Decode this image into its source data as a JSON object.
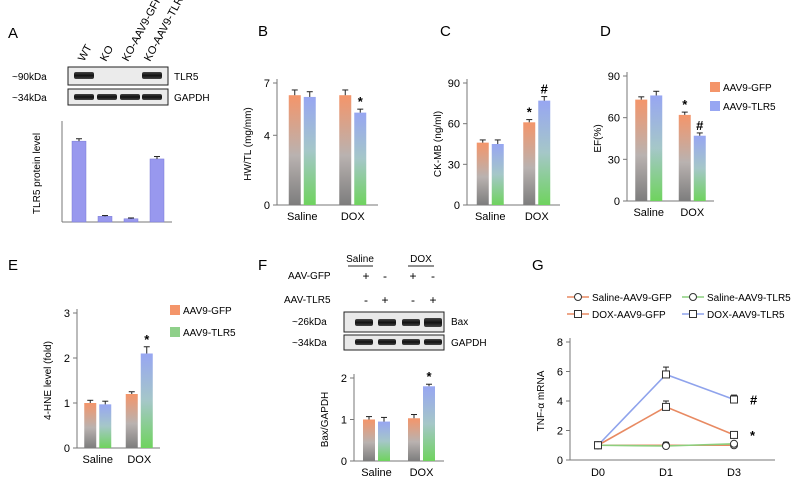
{
  "colors": {
    "gfp_top": "#f4956a",
    "tlr5_top": "#97a6f2",
    "bar_bottom": "#6fd35e",
    "gray_mid": "#b0b0b0",
    "purple_bar": "#9898ee",
    "line_gfp": "#e88a62",
    "line_tlr5": "#8fa3ec",
    "line_green": "#8ccf7e",
    "line_dark": "#333333"
  },
  "panel_labels": {
    "A": "A",
    "B": "B",
    "C": "C",
    "D": "D",
    "E": "E",
    "F": "F",
    "G": "G"
  },
  "legend": {
    "gfp": "AAV9-GFP",
    "tlr5": "AAV9-TLR5"
  },
  "blot_a": {
    "lanes": [
      "WT",
      "KO",
      "KO-AAV9-GFP",
      "KO-AAV9-TLR5"
    ],
    "markers": [
      "~90kDa",
      "~34kDa"
    ],
    "proteins": [
      "TLR5",
      "GAPDH"
    ]
  },
  "blot_f": {
    "groups": [
      "Saline",
      "DOX"
    ],
    "rows": [
      {
        "label": "AAV-GFP",
        "signs": [
          "+",
          "-",
          "+",
          "-"
        ]
      },
      {
        "label": "AAV-TLR5",
        "signs": [
          "-",
          "+",
          "-",
          "+"
        ]
      }
    ],
    "markers": [
      "~26kDa",
      "~34kDa"
    ],
    "proteins": [
      "Bax",
      "GAPDH"
    ]
  },
  "chart_data": [
    {
      "panel": "A",
      "type": "bar",
      "ylabel": "TLR5 protein level",
      "categories": [
        "WT",
        "KO",
        "KO-AAV9-GFP",
        "KO-AAV9-TLR5"
      ],
      "values": [
        1.0,
        0.07,
        0.04,
        0.78
      ],
      "errors": [
        0.03,
        0.01,
        0.01,
        0.03
      ],
      "ylim": [
        0,
        1.2
      ]
    },
    {
      "panel": "B",
      "type": "bar",
      "ylabel": "HW/TL (mg/mm)",
      "categories": [
        "Saline",
        "DOX"
      ],
      "ylim": [
        0,
        7
      ],
      "yticks": [
        0,
        4,
        7
      ],
      "series": [
        {
          "name": "AAV9-GFP",
          "values": [
            6.3,
            6.3
          ],
          "errors": [
            0.3,
            0.3
          ]
        },
        {
          "name": "AAV9-TLR5",
          "values": [
            6.2,
            5.3
          ],
          "errors": [
            0.3,
            0.2
          ]
        }
      ],
      "annotations": [
        {
          "category": "DOX",
          "series": "AAV9-TLR5",
          "text": "*"
        }
      ]
    },
    {
      "panel": "C",
      "type": "bar",
      "ylabel": "CK-MB (ng/ml)",
      "categories": [
        "Saline",
        "DOX"
      ],
      "ylim": [
        0,
        90
      ],
      "yticks": [
        0,
        30,
        60,
        90
      ],
      "series": [
        {
          "name": "AAV9-GFP",
          "values": [
            46,
            61
          ],
          "errors": [
            2,
            2
          ]
        },
        {
          "name": "AAV9-TLR5",
          "values": [
            45,
            77
          ],
          "errors": [
            3,
            3
          ]
        }
      ],
      "annotations": [
        {
          "category": "DOX",
          "series": "AAV9-GFP",
          "text": "*"
        },
        {
          "category": "DOX",
          "series": "AAV9-TLR5",
          "text": "#"
        }
      ]
    },
    {
      "panel": "D",
      "type": "bar",
      "ylabel": "EF(%)",
      "categories": [
        "Saline",
        "DOX"
      ],
      "ylim": [
        0,
        90
      ],
      "yticks": [
        0,
        30,
        60,
        90
      ],
      "series": [
        {
          "name": "AAV9-GFP",
          "values": [
            73,
            62
          ],
          "errors": [
            2,
            2
          ]
        },
        {
          "name": "AAV9-TLR5",
          "values": [
            76,
            47
          ],
          "errors": [
            3,
            2
          ]
        }
      ],
      "annotations": [
        {
          "category": "DOX",
          "series": "AAV9-GFP",
          "text": "*"
        },
        {
          "category": "DOX",
          "series": "AAV9-TLR5",
          "text": "#"
        }
      ]
    },
    {
      "panel": "E",
      "type": "bar",
      "ylabel": "4-HNE level (fold)",
      "categories": [
        "Saline",
        "DOX"
      ],
      "ylim": [
        0,
        3
      ],
      "yticks": [
        0,
        1,
        2,
        3
      ],
      "series": [
        {
          "name": "AAV9-GFP",
          "values": [
            1.0,
            1.2
          ],
          "errors": [
            0.06,
            0.05
          ]
        },
        {
          "name": "AAV9-TLR5",
          "values": [
            0.97,
            2.1
          ],
          "errors": [
            0.07,
            0.15
          ]
        }
      ],
      "annotations": [
        {
          "category": "DOX",
          "series": "AAV9-TLR5",
          "text": "*"
        }
      ]
    },
    {
      "panel": "F",
      "type": "bar",
      "ylabel": "Bax/GAPDH",
      "categories": [
        "Saline",
        "DOX"
      ],
      "ylim": [
        0,
        2
      ],
      "yticks": [
        0,
        1,
        2
      ],
      "series": [
        {
          "name": "AAV9-GFP",
          "values": [
            1.0,
            1.03
          ],
          "errors": [
            0.07,
            0.09
          ]
        },
        {
          "name": "AAV9-TLR5",
          "values": [
            0.95,
            1.8
          ],
          "errors": [
            0.1,
            0.05
          ]
        }
      ],
      "annotations": [
        {
          "category": "DOX",
          "series": "AAV9-TLR5",
          "text": "*"
        }
      ]
    },
    {
      "panel": "G",
      "type": "line",
      "ylabel": "TNF-α mRNA",
      "x": [
        "D0",
        "D1",
        "D3"
      ],
      "ylim": [
        0,
        8
      ],
      "yticks": [
        0,
        2,
        4,
        6,
        8
      ],
      "series": [
        {
          "name": "Saline-AAV9-GFP",
          "values": [
            1.0,
            1.0,
            1.0
          ],
          "errors": [
            0.1,
            0.2,
            0.1
          ]
        },
        {
          "name": "Saline-AAV9-TLR5",
          "values": [
            1.0,
            0.95,
            1.1
          ],
          "errors": [
            0.1,
            0.2,
            0.1
          ]
        },
        {
          "name": "DOX-AAV9-GFP",
          "values": [
            1.0,
            3.6,
            1.7
          ],
          "errors": [
            0.1,
            0.4,
            0.2
          ]
        },
        {
          "name": "DOX-AAV9-TLR5",
          "values": [
            1.0,
            5.8,
            4.1
          ],
          "errors": [
            0.1,
            0.5,
            0.3
          ]
        }
      ],
      "annotations": [
        {
          "x": "D3",
          "series": "DOX-AAV9-TLR5",
          "text": "#"
        },
        {
          "x": "D3",
          "series": "DOX-AAV9-GFP",
          "text": "*"
        }
      ]
    }
  ]
}
